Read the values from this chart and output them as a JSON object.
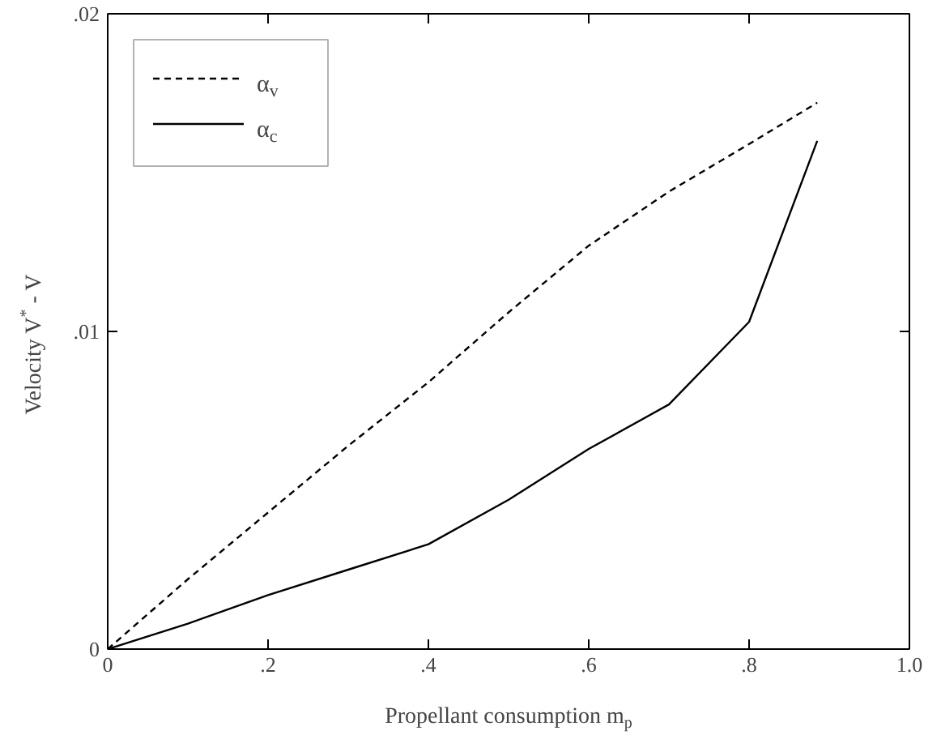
{
  "chart_data": {
    "type": "line",
    "xlabel": "Propellant consumption m$_{p}$",
    "ylabel": "Velocity V$^{*}$ - V",
    "x": [
      0,
      0.1,
      0.2,
      0.3,
      0.4,
      0.5,
      0.6,
      0.7,
      0.8,
      0.885
    ],
    "series": [
      {
        "name": "α$_{v}$",
        "color": "#000000",
        "line_style": "dashed",
        "values": [
          0,
          0.0022,
          0.0043,
          0.0064,
          0.0084,
          0.0106,
          0.0127,
          0.0144,
          0.0159,
          0.0172
        ]
      },
      {
        "name": "α$_{c}$",
        "color": "#000000",
        "line_style": "solid",
        "values": [
          0,
          0.0008,
          0.0017,
          0.0025,
          0.0033,
          0.0047,
          0.0063,
          0.0077,
          0.0103,
          0.016
        ]
      }
    ],
    "xlim": [
      0,
      1.0
    ],
    "ylim": [
      0,
      0.02
    ],
    "xticks": [
      0,
      {
        "value": 0.2,
        "label": ".2"
      },
      {
        "value": 0.4,
        "label": ".4"
      },
      {
        "value": 0.6,
        "label": ".6"
      },
      {
        "value": 0.8,
        "label": ".8"
      },
      {
        "value": 1.0,
        "label": "1.0"
      }
    ],
    "yticks": [
      0,
      {
        "value": 0.01,
        "label": ".01"
      },
      {
        "value": 0.02,
        "label": ".02"
      }
    ],
    "grid": false,
    "legend": "top left",
    "marker": "none"
  }
}
